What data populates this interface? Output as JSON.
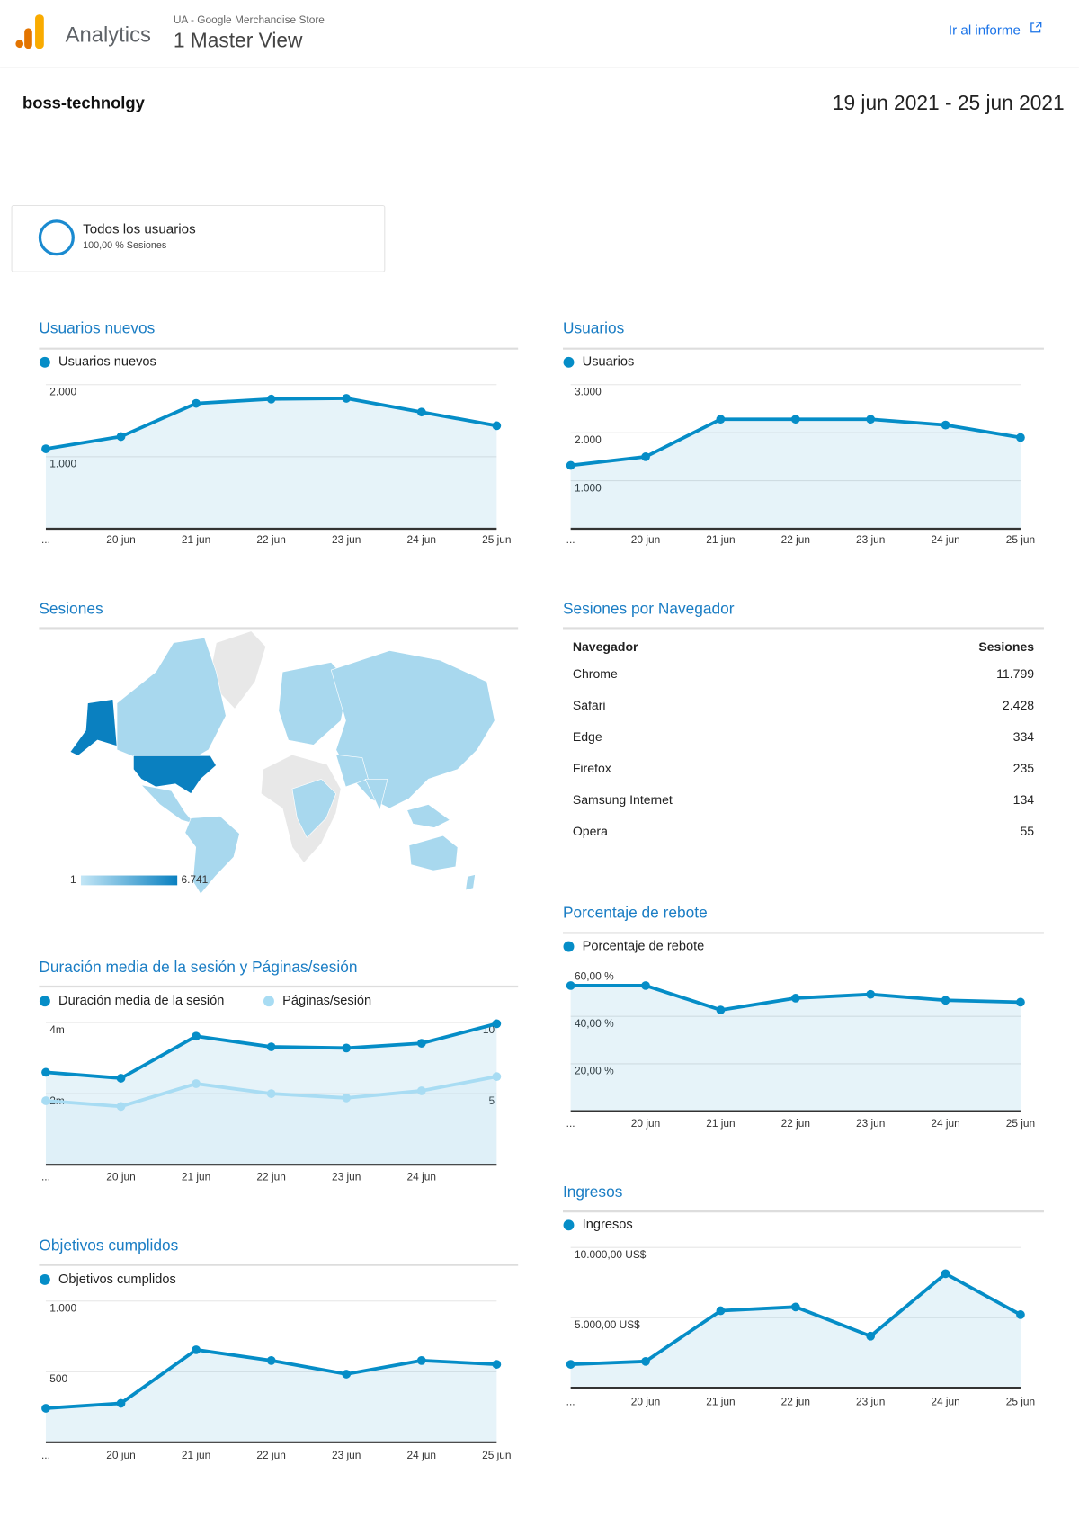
{
  "header": {
    "app": "Analytics",
    "account": "UA - Google Merchandise Store",
    "view": "1 Master View",
    "link": "Ir al informe"
  },
  "report": {
    "title": "boss-technolgy",
    "date_range": "19 jun 2021 - 25 jun 2021"
  },
  "segment": {
    "name": "Todos los usuarios",
    "detail": "100,00 % Sesiones"
  },
  "chart_data": [
    {
      "type": "line",
      "title": "Usuarios nuevos",
      "grid": true,
      "categories": [
        "...",
        "20 jun",
        "21 jun",
        "22 jun",
        "23 jun",
        "24 jun",
        "25 jun"
      ],
      "series": [
        {
          "name": "Usuarios nuevos",
          "color": "#058dc7",
          "values": [
            1110,
            1280,
            1740,
            1800,
            1810,
            1620,
            1430
          ]
        }
      ],
      "ylim": [
        0,
        2000
      ],
      "yticks": [
        {
          "value": 1000,
          "label": "1.000"
        },
        {
          "value": 2000,
          "label": "2.000"
        }
      ]
    },
    {
      "type": "line",
      "title": "Usuarios",
      "grid": true,
      "categories": [
        "...",
        "20 jun",
        "21 jun",
        "22 jun",
        "23 jun",
        "24 jun",
        "25 jun"
      ],
      "series": [
        {
          "name": "Usuarios",
          "color": "#058dc7",
          "values": [
            1320,
            1500,
            2280,
            2280,
            2280,
            2160,
            1900
          ]
        }
      ],
      "ylim": [
        0,
        3000
      ],
      "yticks": [
        {
          "value": 1000,
          "label": "1.000"
        },
        {
          "value": 2000,
          "label": "2.000"
        },
        {
          "value": 3000,
          "label": "3.000"
        }
      ]
    },
    {
      "type": "map",
      "title": "Sesiones",
      "scale": [
        {
          "value": 1,
          "label": "1"
        },
        {
          "value": 6741,
          "label": "6.741"
        }
      ],
      "scale_colors": [
        "#c3e6f6",
        "#0a80c0"
      ]
    },
    {
      "type": "table",
      "title": "Sesiones por Navegador",
      "columns": [
        "Navegador",
        "Sesiones"
      ],
      "rows": [
        [
          "Chrome",
          "11.799"
        ],
        [
          "Safari",
          "2.428"
        ],
        [
          "Edge",
          "334"
        ],
        [
          "Firefox",
          "235"
        ],
        [
          "Samsung Internet",
          "134"
        ],
        [
          "Opera",
          "55"
        ]
      ]
    },
    {
      "type": "line",
      "title": "Porcentaje de rebote",
      "grid": true,
      "categories": [
        "...",
        "20 jun",
        "21 jun",
        "22 jun",
        "23 jun",
        "24 jun",
        "25 jun"
      ],
      "series": [
        {
          "name": "Porcentaje de rebote",
          "color": "#058dc7",
          "values": [
            53.0,
            53.0,
            42.7,
            47.7,
            49.3,
            46.8,
            46.0
          ]
        }
      ],
      "ylim": [
        0,
        60
      ],
      "yticks": [
        {
          "value": 20,
          "label": "20,00 %"
        },
        {
          "value": 40,
          "label": "40,00 %"
        },
        {
          "value": 60,
          "label": "60,00 %"
        }
      ]
    },
    {
      "type": "line",
      "title": "Duración media de la sesión y Páginas/sesión",
      "grid": true,
      "categories": [
        "...",
        "20 jun",
        "21 jun",
        "22 jun",
        "23 jun",
        "24 jun",
        null
      ],
      "series": [
        {
          "name": "Duración media de la sesión",
          "color": "#058dc7",
          "values": [
            156,
            146,
            217,
            199,
            197,
            205,
            238
          ]
        },
        {
          "name": "Páginas/sesión",
          "color": "#a8dcf3",
          "axis": "y2",
          "values": [
            4.5,
            4.1,
            5.7,
            5.0,
            4.7,
            5.2,
            6.2
          ]
        }
      ],
      "ylim": [
        0,
        240
      ],
      "yticks": [
        {
          "value": 120,
          "label": "2m"
        },
        {
          "value": 240,
          "label": "4m"
        }
      ],
      "y2lim": [
        0,
        10
      ],
      "y2ticks": [
        5,
        10
      ]
    },
    {
      "type": "line",
      "title": "Ingresos",
      "grid": true,
      "categories": [
        "...",
        "20 jun",
        "21 jun",
        "22 jun",
        "23 jun",
        "24 jun",
        "25 jun"
      ],
      "series": [
        {
          "name": "Ingresos",
          "color": "#058dc7",
          "values": [
            1670,
            1880,
            5490,
            5760,
            3680,
            8130,
            5210
          ]
        }
      ],
      "ylim": [
        0,
        10000
      ],
      "yticks": [
        {
          "value": 5000,
          "label": "5.000,00 US$"
        },
        {
          "value": 10000,
          "label": "10.000,00 US$"
        }
      ]
    },
    {
      "type": "line",
      "title": "Objetivos cumplidos",
      "grid": true,
      "categories": [
        "...",
        "20 jun",
        "21 jun",
        "22 jun",
        "23 jun",
        "24 jun",
        "25 jun"
      ],
      "series": [
        {
          "name": "Objetivos cumplidos",
          "color": "#058dc7",
          "values": [
            241,
            276,
            655,
            579,
            483,
            579,
            552
          ]
        }
      ],
      "ylim": [
        0,
        1000
      ],
      "yticks": [
        {
          "value": 500,
          "label": "500"
        },
        {
          "value": 1000,
          "label": "1.000"
        }
      ]
    }
  ]
}
